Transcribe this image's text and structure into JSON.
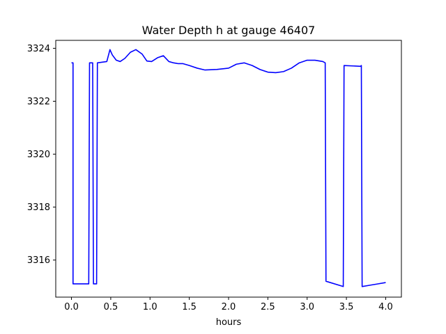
{
  "chart_data": {
    "type": "line",
    "title": "Water Depth h at gauge 46407",
    "xlabel": "hours",
    "ylabel": "",
    "xlim": [
      -0.2,
      4.2
    ],
    "ylim": [
      3314.6,
      3324.3
    ],
    "xticks": [
      0.0,
      0.5,
      1.0,
      1.5,
      2.0,
      2.5,
      3.0,
      3.5,
      4.0
    ],
    "xtick_labels": [
      "0.0",
      "0.5",
      "1.0",
      "1.5",
      "2.0",
      "2.5",
      "3.0",
      "3.5",
      "4.0"
    ],
    "yticks": [
      3316,
      3318,
      3320,
      3322,
      3324
    ],
    "ytick_labels": [
      "3316",
      "3318",
      "3320",
      "3322",
      "3324"
    ],
    "grid": false,
    "series": [
      {
        "color": "#0000ff",
        "x": [
          0.0,
          0.02,
          0.02,
          0.22,
          0.23,
          0.27,
          0.28,
          0.32,
          0.33,
          0.45,
          0.49,
          0.52,
          0.57,
          0.62,
          0.68,
          0.75,
          0.82,
          0.9,
          0.96,
          1.02,
          1.1,
          1.17,
          1.24,
          1.3,
          1.36,
          1.42,
          1.5,
          1.6,
          1.7,
          1.85,
          2.0,
          2.1,
          2.2,
          2.3,
          2.4,
          2.5,
          2.6,
          2.7,
          2.8,
          2.9,
          3.0,
          3.1,
          3.2,
          3.23,
          3.24,
          3.46,
          3.47,
          3.68,
          3.69,
          3.7,
          3.8,
          3.9,
          4.0
        ],
        "y": [
          3323.45,
          3323.45,
          3315.1,
          3315.1,
          3323.45,
          3323.45,
          3315.1,
          3315.1,
          3323.45,
          3323.5,
          3323.95,
          3323.75,
          3323.55,
          3323.5,
          3323.62,
          3323.85,
          3323.95,
          3323.78,
          3323.52,
          3323.5,
          3323.65,
          3323.72,
          3323.5,
          3323.45,
          3323.42,
          3323.42,
          3323.35,
          3323.25,
          3323.18,
          3323.2,
          3323.25,
          3323.4,
          3323.45,
          3323.35,
          3323.2,
          3323.1,
          3323.08,
          3323.12,
          3323.25,
          3323.45,
          3323.55,
          3323.55,
          3323.5,
          3323.45,
          3315.2,
          3315.0,
          3323.35,
          3323.32,
          3323.35,
          3315.0,
          3315.05,
          3315.1,
          3315.15
        ]
      }
    ]
  }
}
